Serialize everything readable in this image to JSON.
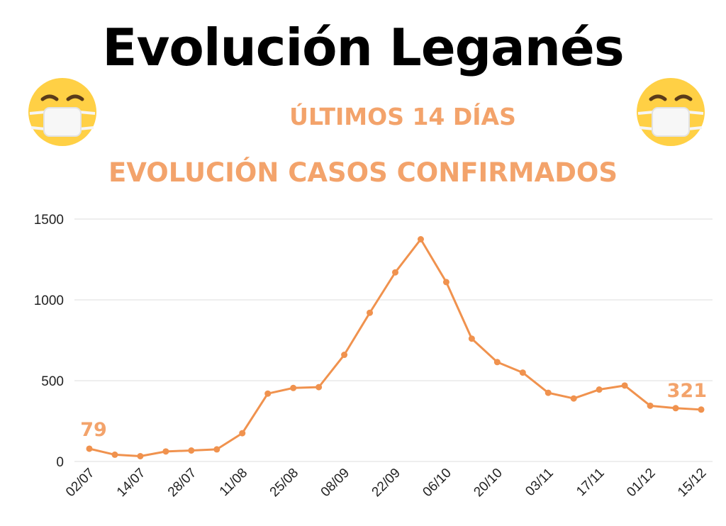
{
  "header": {
    "title": "Evolución Leganés",
    "subtitle1": "ÚLTIMOS 14 DÍAS",
    "subtitle2": "EVOLUCIÓN CASOS CONFIRMADOS"
  },
  "icons": {
    "left": "face-with-medical-mask-icon",
    "right": "face-with-medical-mask-icon"
  },
  "colors": {
    "line": "#f0924e",
    "accent_text": "#f3a36b",
    "grid": "#dddddd"
  },
  "chart_data": {
    "type": "line",
    "title": "",
    "xlabel": "",
    "ylabel": "",
    "ylim": [
      0,
      1500
    ],
    "yticks": [
      0,
      500,
      1000,
      1500
    ],
    "grid": true,
    "x_tick_labels": [
      "02/07",
      "14/07",
      "28/07",
      "11/08",
      "25/08",
      "08/09",
      "22/09",
      "06/10",
      "20/10",
      "03/11",
      "17/11",
      "01/12",
      "15/12"
    ],
    "x": [
      "02/07",
      "",
      "14/07",
      "",
      "28/07",
      "",
      "11/08",
      "",
      "25/08",
      "",
      "08/09",
      "",
      "22/09",
      "",
      "06/10",
      "",
      "20/10",
      "",
      "03/11",
      "",
      "17/11",
      "",
      "01/12",
      "",
      "15/12"
    ],
    "series": [
      {
        "values": [
          79,
          42,
          33,
          62,
          68,
          75,
          175,
          420,
          455,
          460,
          660,
          920,
          1170,
          1375,
          1110,
          760,
          615,
          550,
          425,
          390,
          445,
          470,
          345,
          330,
          321
        ]
      }
    ],
    "annotations": [
      {
        "point_index": 0,
        "text": "79"
      },
      {
        "point_index": 24,
        "text": "321"
      }
    ]
  }
}
